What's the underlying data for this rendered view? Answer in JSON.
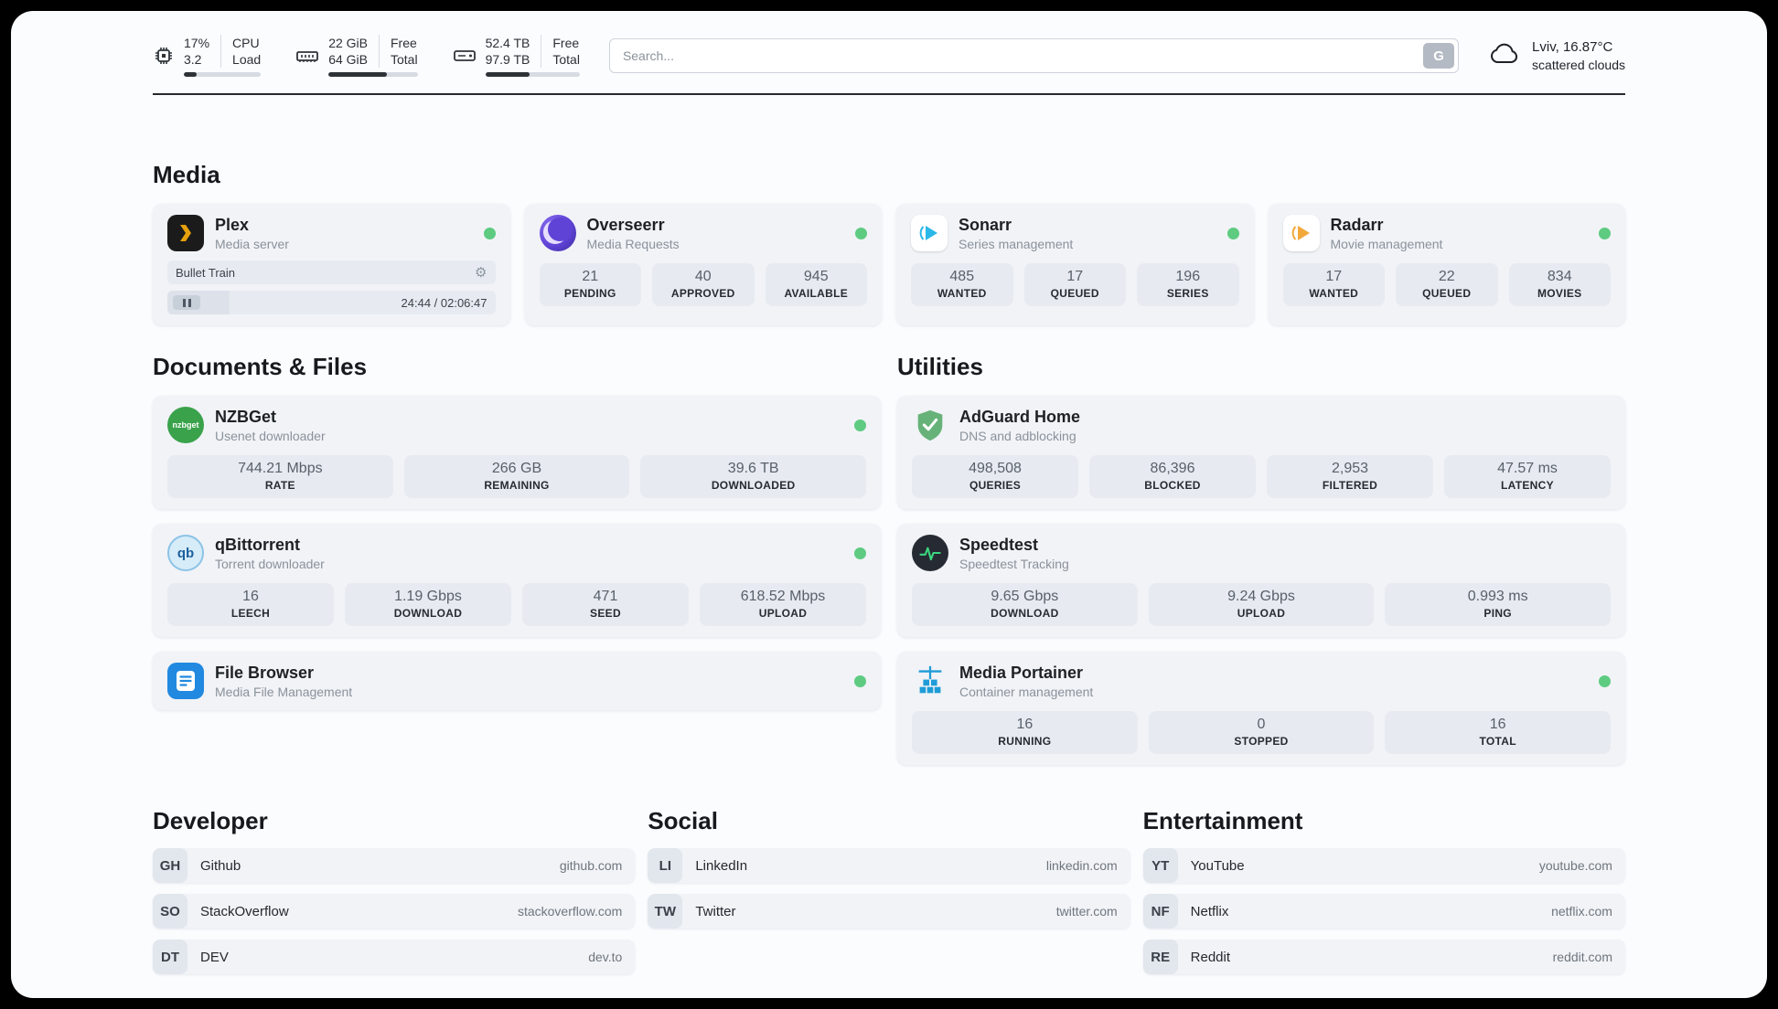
{
  "colors": {
    "status_online": "#5ecb81",
    "plex_accent": "#e5a00d",
    "sonarr_accent": "#2ab8e8",
    "radarr_accent": "#f2a93b",
    "overseerr_accent": "#5f43d6",
    "nzbget_accent": "#3aa24b",
    "qbittorrent_accent": "#1d5f9e",
    "filebrowser_accent": "#2289e0",
    "adguard_accent": "#67b279",
    "speedtest_accent": "#3bd67e",
    "portainer_accent": "#1f9cd7"
  },
  "icons": {
    "gear": "⚙",
    "qbittorrent_text": "qb",
    "nzbget_text": "nzbget"
  },
  "header": {
    "cpu": {
      "value": "17%",
      "load": "3.2",
      "label1": "CPU",
      "label2": "Load",
      "bar_percent": 17
    },
    "memory": {
      "free": "22 GiB",
      "total": "64 GiB",
      "label1": "Free",
      "label2": "Total",
      "bar_percent": 66
    },
    "storage": {
      "free": "52.4 TB",
      "total": "97.9 TB",
      "label1": "Free",
      "label2": "Total",
      "bar_percent": 47
    },
    "search": {
      "placeholder": "Search...",
      "button_label": "G"
    },
    "weather": {
      "location": "Lviv, 16.87°C",
      "condition": "scattered clouds"
    }
  },
  "media": {
    "title": "Media",
    "plex": {
      "name": "Plex",
      "subtitle": "Media server",
      "now_playing": "Bullet Train",
      "time": "24:44 / 02:06:47",
      "progress_percent": 19
    },
    "overseerr": {
      "name": "Overseerr",
      "subtitle": "Media Requests",
      "stats": [
        {
          "value": "21",
          "label": "PENDING"
        },
        {
          "value": "40",
          "label": "APPROVED"
        },
        {
          "value": "945",
          "label": "AVAILABLE"
        }
      ]
    },
    "sonarr": {
      "name": "Sonarr",
      "subtitle": "Series management",
      "stats": [
        {
          "value": "485",
          "label": "WANTED"
        },
        {
          "value": "17",
          "label": "QUEUED"
        },
        {
          "value": "196",
          "label": "SERIES"
        }
      ]
    },
    "radarr": {
      "name": "Radarr",
      "subtitle": "Movie management",
      "stats": [
        {
          "value": "17",
          "label": "WANTED"
        },
        {
          "value": "22",
          "label": "QUEUED"
        },
        {
          "value": "834",
          "label": "MOVIES"
        }
      ]
    }
  },
  "documents": {
    "title": "Documents & Files",
    "nzbget": {
      "name": "NZBGet",
      "subtitle": "Usenet downloader",
      "stats": [
        {
          "value": "744.21 Mbps",
          "label": "RATE"
        },
        {
          "value": "266 GB",
          "label": "REMAINING"
        },
        {
          "value": "39.6 TB",
          "label": "DOWNLOADED"
        }
      ]
    },
    "qbittorrent": {
      "name": "qBittorrent",
      "subtitle": "Torrent downloader",
      "stats": [
        {
          "value": "16",
          "label": "LEECH"
        },
        {
          "value": "1.19 Gbps",
          "label": "DOWNLOAD"
        },
        {
          "value": "471",
          "label": "SEED"
        },
        {
          "value": "618.52 Mbps",
          "label": "UPLOAD"
        }
      ]
    },
    "filebrowser": {
      "name": "File Browser",
      "subtitle": "Media File Management"
    }
  },
  "utilities": {
    "title": "Utilities",
    "adguard": {
      "name": "AdGuard Home",
      "subtitle": "DNS and adblocking",
      "stats": [
        {
          "value": "498,508",
          "label": "QUERIES"
        },
        {
          "value": "86,396",
          "label": "BLOCKED"
        },
        {
          "value": "2,953",
          "label": "FILTERED"
        },
        {
          "value": "47.57 ms",
          "label": "LATENCY"
        }
      ]
    },
    "speedtest": {
      "name": "Speedtest",
      "subtitle": "Speedtest Tracking",
      "stats": [
        {
          "value": "9.65 Gbps",
          "label": "DOWNLOAD"
        },
        {
          "value": "9.24 Gbps",
          "label": "UPLOAD"
        },
        {
          "value": "0.993 ms",
          "label": "PING"
        }
      ]
    },
    "portainer": {
      "name": "Media Portainer",
      "subtitle": "Container management",
      "stats": [
        {
          "value": "16",
          "label": "RUNNING"
        },
        {
          "value": "0",
          "label": "STOPPED"
        },
        {
          "value": "16",
          "label": "TOTAL"
        }
      ]
    }
  },
  "bookmarks": {
    "developer": {
      "title": "Developer",
      "items": [
        {
          "abbr": "GH",
          "name": "Github",
          "url": "github.com"
        },
        {
          "abbr": "SO",
          "name": "StackOverflow",
          "url": "stackoverflow.com"
        },
        {
          "abbr": "DT",
          "name": "DEV",
          "url": "dev.to"
        }
      ]
    },
    "social": {
      "title": "Social",
      "items": [
        {
          "abbr": "LI",
          "name": "LinkedIn",
          "url": "linkedin.com"
        },
        {
          "abbr": "TW",
          "name": "Twitter",
          "url": "twitter.com"
        }
      ]
    },
    "entertainment": {
      "title": "Entertainment",
      "items": [
        {
          "abbr": "YT",
          "name": "YouTube",
          "url": "youtube.com"
        },
        {
          "abbr": "NF",
          "name": "Netflix",
          "url": "netflix.com"
        },
        {
          "abbr": "RE",
          "name": "Reddit",
          "url": "reddit.com"
        }
      ]
    }
  }
}
